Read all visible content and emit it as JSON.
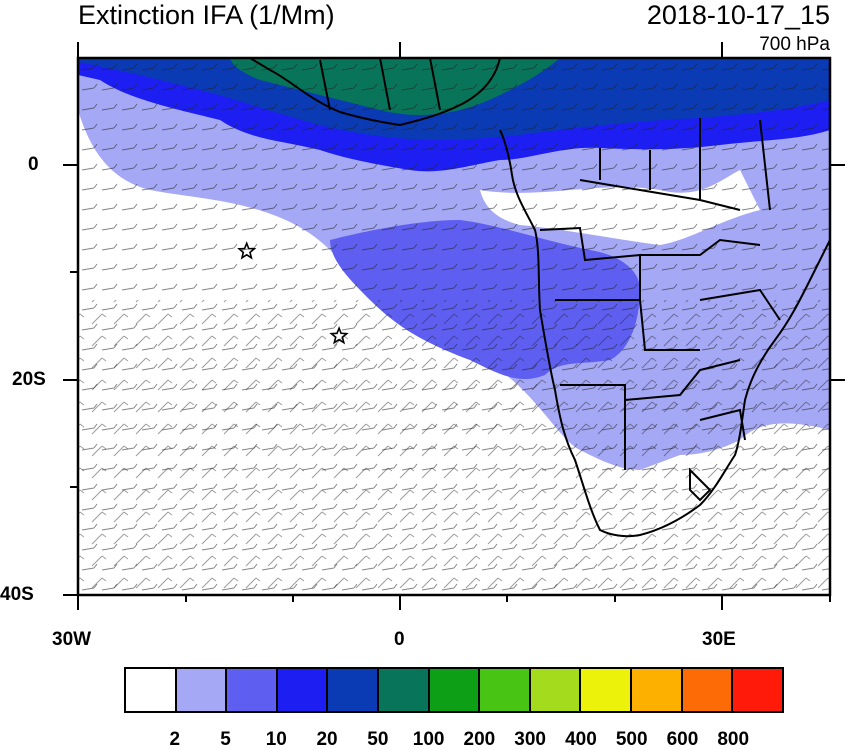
{
  "header": {
    "title": "Extinction IFA (1/Mm)",
    "datetime": "2018-10-17_15",
    "level": "700 hPa"
  },
  "axes": {
    "y_labels": [
      "0",
      "20S",
      "40S"
    ],
    "x_labels": [
      "30W",
      "0",
      "30E"
    ]
  },
  "colorbar": {
    "colors": [
      "#ffffff",
      "#a5a8f4",
      "#5e5ff0",
      "#1d1ff2",
      "#0a3ab4",
      "#08755a",
      "#0da017",
      "#47c414",
      "#a4db1c",
      "#edf20b",
      "#fdb000",
      "#fd6b07",
      "#ff1a0a"
    ],
    "labels": [
      "2",
      "5",
      "10",
      "20",
      "50",
      "100",
      "200",
      "300",
      "400",
      "500",
      "600",
      "800"
    ]
  },
  "map": {
    "lon_range": [
      -30,
      40
    ],
    "lat_range": [
      -40,
      10
    ],
    "markers": [
      {
        "lon": -14.3,
        "lat": -8.0,
        "name": "star-marker-ascension"
      },
      {
        "lon": -5.7,
        "lat": -15.9,
        "name": "star-marker-st-helena"
      }
    ]
  }
}
